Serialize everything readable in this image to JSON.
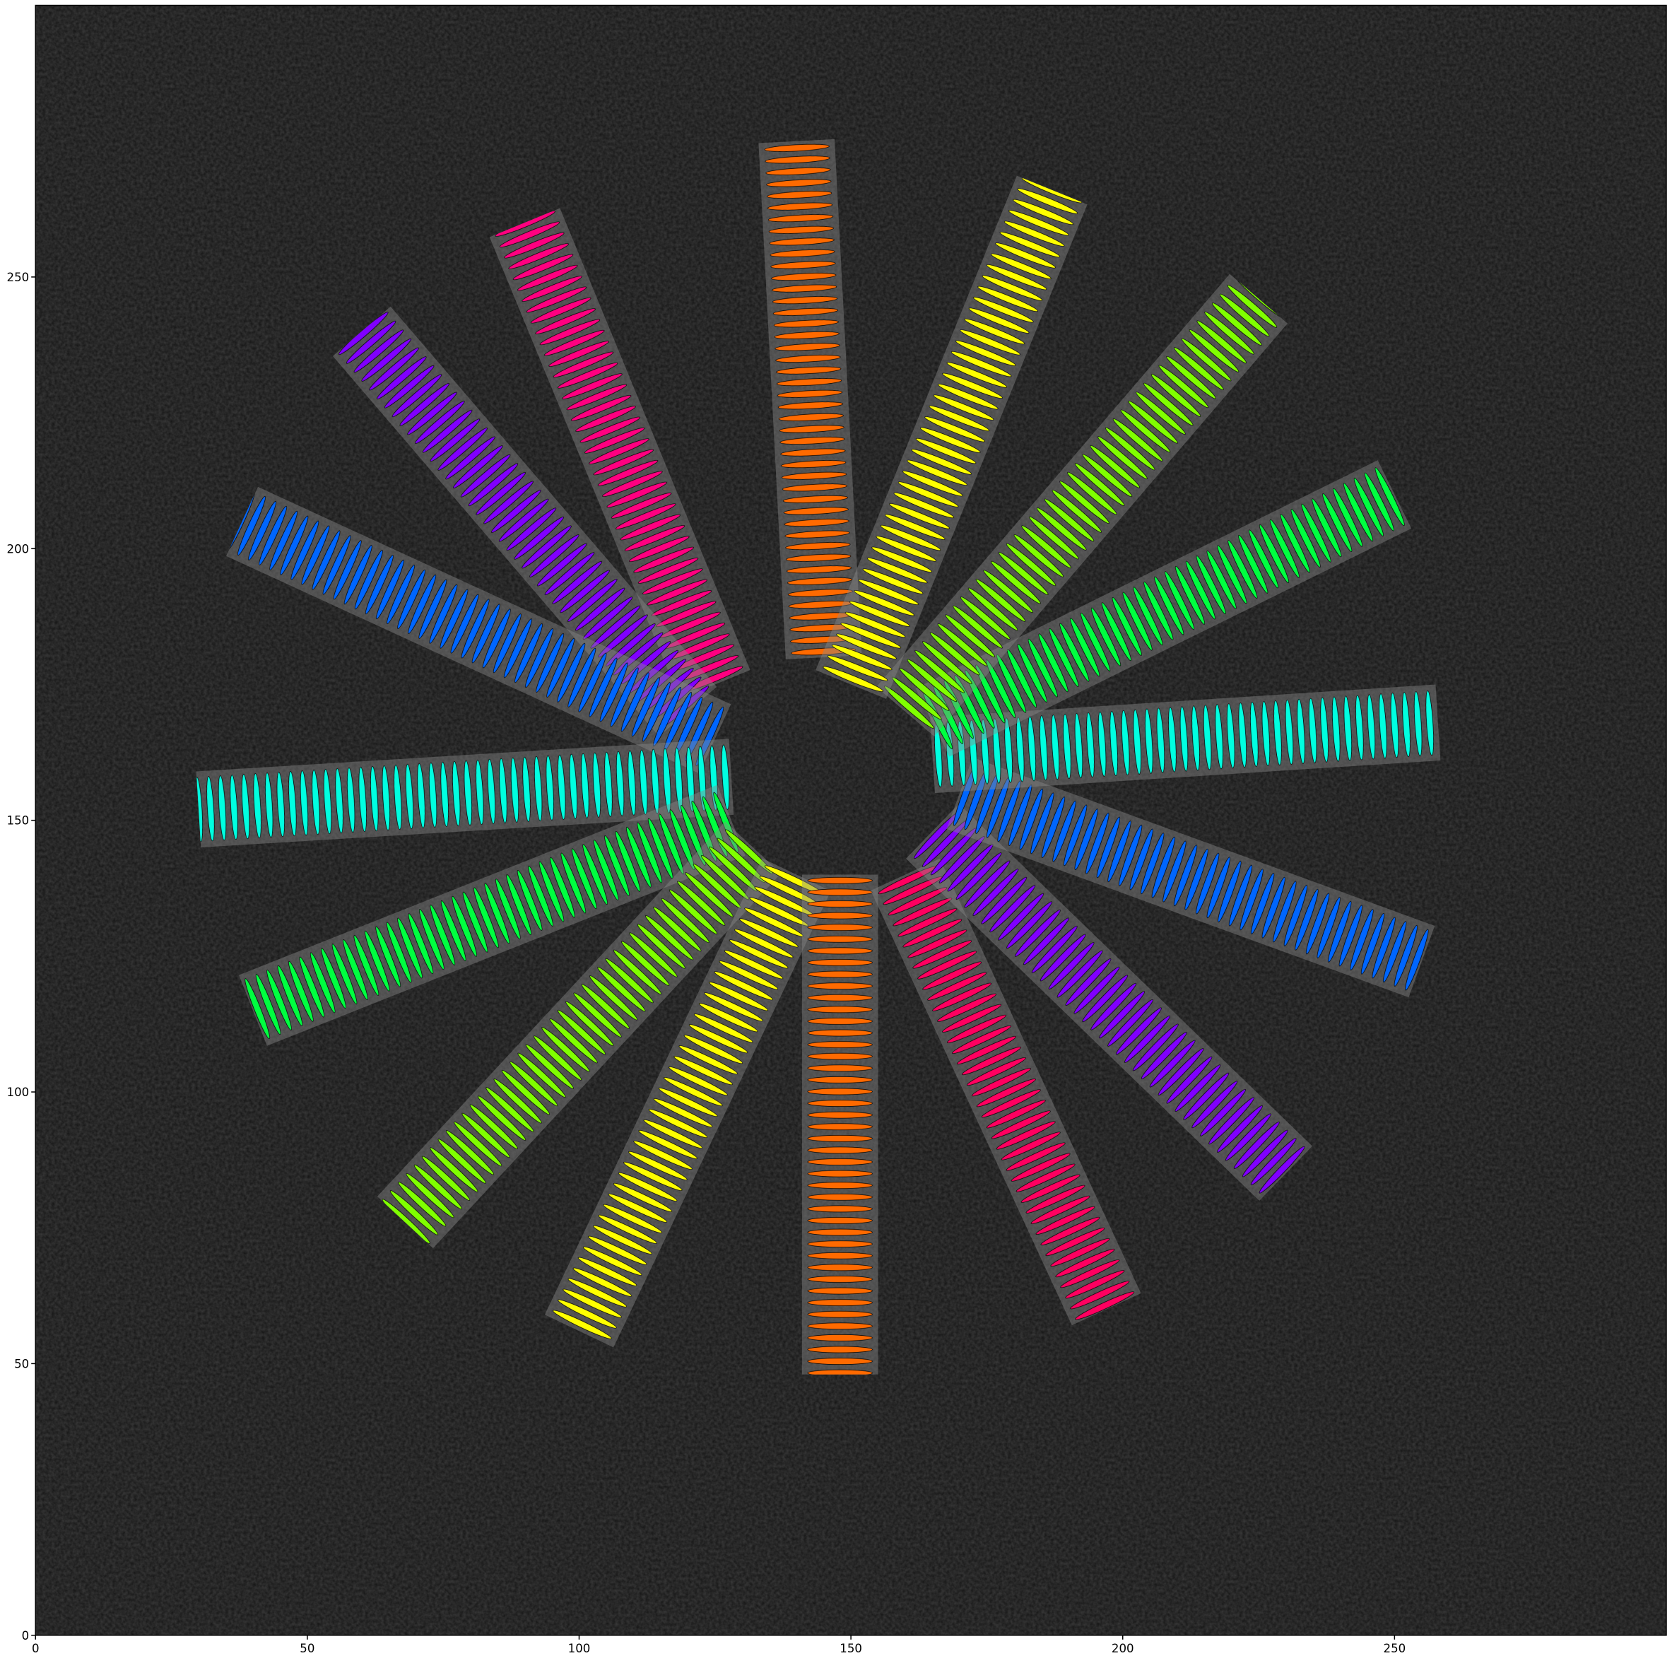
{
  "chart_data": {
    "type": "bands",
    "xlim": [
      0,
      300
    ],
    "ylim": [
      0,
      300
    ],
    "xticks": [
      0,
      50,
      100,
      150,
      200,
      250
    ],
    "yticks": [
      0,
      50,
      100,
      150,
      200,
      250
    ],
    "band_width": 14,
    "series": [
      {
        "color": "#ff6a00",
        "x": [
          145,
          140
        ],
        "y": [
          180,
          275
        ]
      },
      {
        "color": "#ff0080",
        "x": [
          125,
          90
        ],
        "y": [
          175,
          260
        ]
      },
      {
        "color": "#8000ff",
        "x": [
          120,
          60
        ],
        "y": [
          170,
          240
        ]
      },
      {
        "color": "#0066ff",
        "x": [
          125,
          38
        ],
        "y": [
          165,
          205
        ]
      },
      {
        "color": "#00ffe0",
        "x": [
          128,
          30
        ],
        "y": [
          158,
          152
        ]
      },
      {
        "color": "#00ff40",
        "x": [
          128,
          40
        ],
        "y": [
          150,
          115
        ]
      },
      {
        "color": "#80ff00",
        "x": [
          132,
          68
        ],
        "y": [
          145,
          76
        ]
      },
      {
        "color": "#ffff00",
        "x": [
          140,
          100
        ],
        "y": [
          140,
          56
        ]
      },
      {
        "color": "#ff6a00",
        "x": [
          148,
          148
        ],
        "y": [
          140,
          48
        ]
      },
      {
        "color": "#ff0060",
        "x": [
          160,
          197
        ],
        "y": [
          140,
          60
        ]
      },
      {
        "color": "#8000ff",
        "x": [
          165,
          230
        ],
        "y": [
          148,
          85
        ]
      },
      {
        "color": "#0066ff",
        "x": [
          170,
          255
        ],
        "y": [
          155,
          124
        ]
      },
      {
        "color": "#00ffe0",
        "x": [
          165,
          258
        ],
        "y": [
          162,
          168
        ]
      },
      {
        "color": "#00ff40",
        "x": [
          165,
          250
        ],
        "y": [
          168,
          210
        ]
      },
      {
        "color": "#80ff00",
        "x": [
          160,
          225
        ],
        "y": [
          170,
          246
        ]
      },
      {
        "color": "#ffff00",
        "x": [
          150,
          187
        ],
        "y": [
          175,
          266
        ]
      }
    ]
  }
}
